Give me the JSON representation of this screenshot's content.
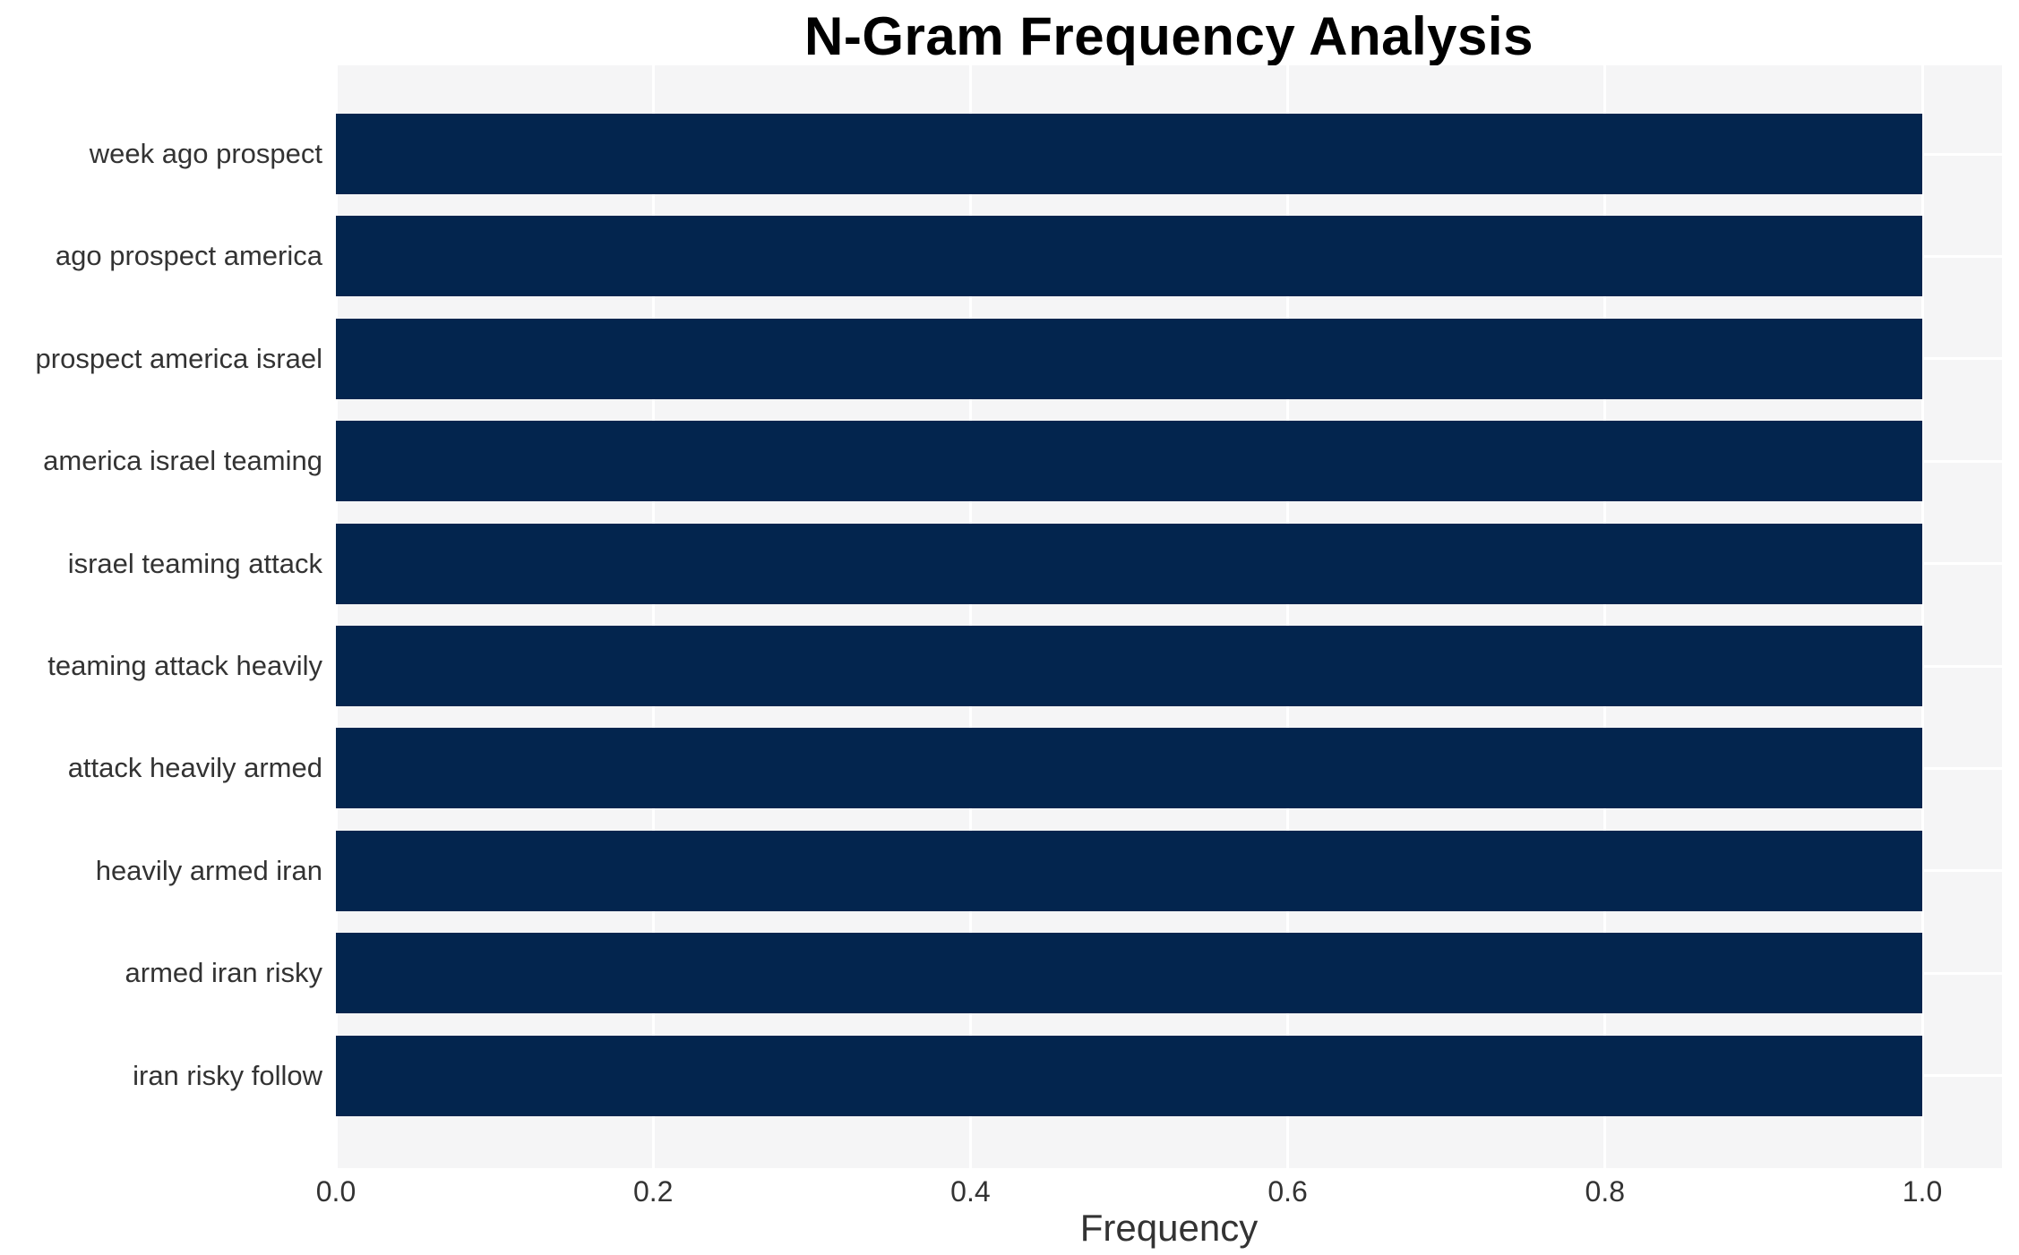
{
  "title": "N-Gram Frequency Analysis",
  "colors": {
    "bar": "#03254e",
    "plot_background": "#f5f5f6",
    "gridline": "#ffffff",
    "tick_text": "#333333",
    "title_text": "#000000"
  },
  "chart_data": {
    "type": "bar",
    "orientation": "horizontal",
    "title": "N-Gram Frequency Analysis",
    "xlabel": "Frequency",
    "ylabel": "",
    "categories": [
      "week ago prospect",
      "ago prospect america",
      "prospect america israel",
      "america israel teaming",
      "israel teaming attack",
      "teaming attack heavily",
      "attack heavily armed",
      "heavily armed iran",
      "armed iran risky",
      "iran risky follow"
    ],
    "values": [
      1.0,
      1.0,
      1.0,
      1.0,
      1.0,
      1.0,
      1.0,
      1.0,
      1.0,
      1.0
    ],
    "xlim": [
      0.0,
      1.0
    ],
    "xtick_labels": [
      "0.0",
      "0.2",
      "0.4",
      "0.6",
      "0.8",
      "1.0"
    ],
    "xtick_values": [
      0.0,
      0.2,
      0.4,
      0.6,
      0.8,
      1.0
    ],
    "grid": true,
    "legend": false
  }
}
